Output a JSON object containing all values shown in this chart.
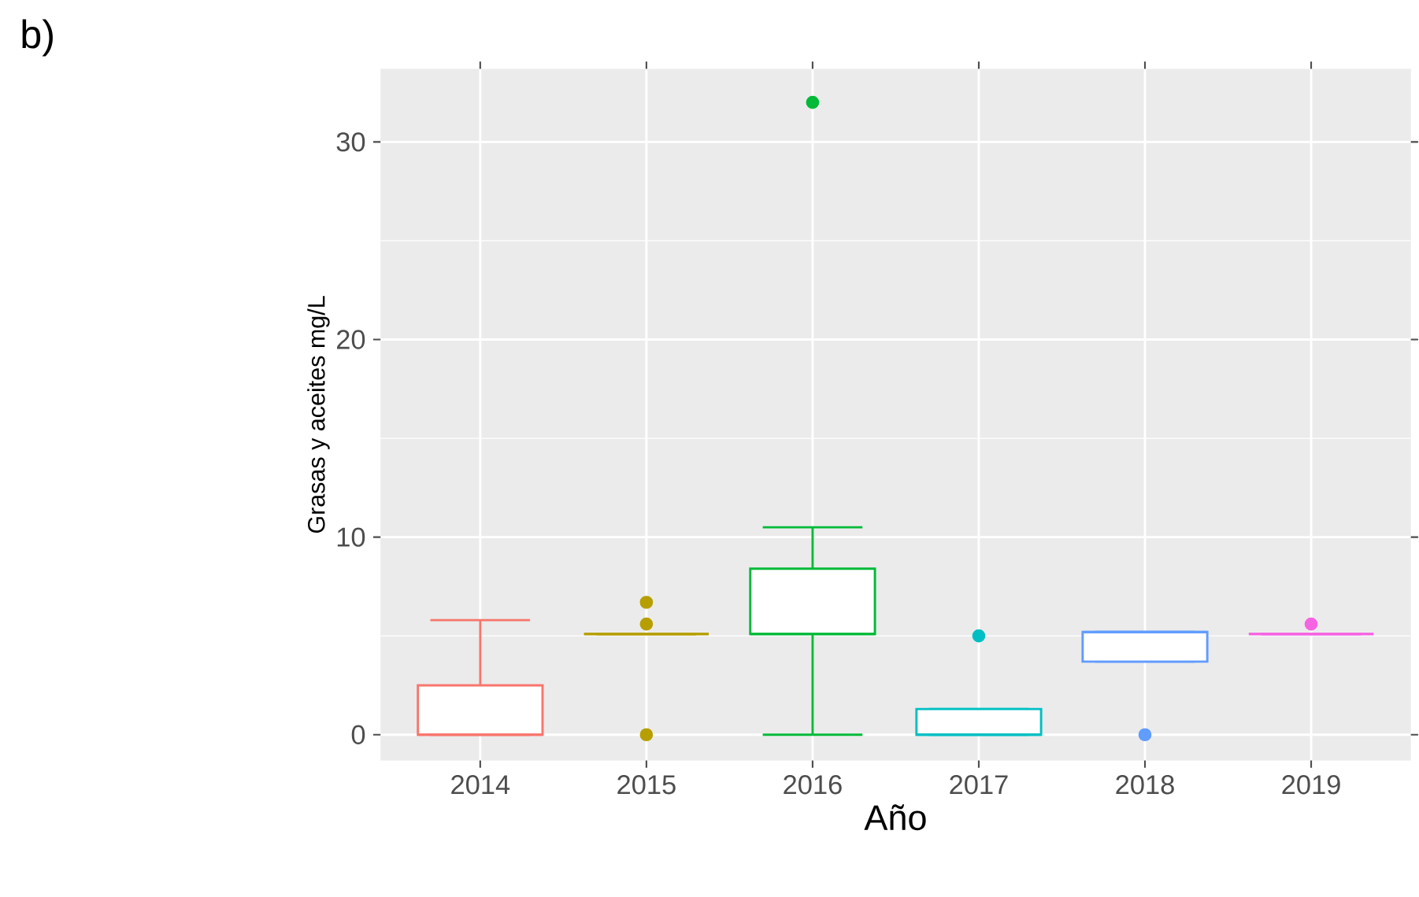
{
  "chart_data": {
    "type": "box",
    "xlabel": "Año",
    "ylabel": "Grasas y aceites mg/L",
    "annotations": [
      "b)"
    ],
    "categories": [
      "2014",
      "2015",
      "2016",
      "2017",
      "2018",
      "2019"
    ],
    "colors": [
      "#f8766d",
      "#b79f00",
      "#00ba38",
      "#00bfc4",
      "#619cff",
      "#f564e3"
    ],
    "boxes": [
      {
        "low": 0,
        "q1": 0,
        "median": 0,
        "q3": 2.5,
        "high": 5.8
      },
      {
        "low": 5.1,
        "q1": 5.1,
        "median": 5.1,
        "q3": 5.1,
        "high": 5.1,
        "outliers": [
          0,
          5.6,
          6.7
        ]
      },
      {
        "low": 0,
        "q1": 5.1,
        "median": 5.1,
        "q3": 8.4,
        "high": 10.5,
        "outliers": [
          32
        ]
      },
      {
        "low": 0,
        "q1": 0,
        "median": 0,
        "q3": 1.3,
        "high": 1.3,
        "outliers": [
          5
        ]
      },
      {
        "low": 3.7,
        "q1": 3.7,
        "median": 5.2,
        "q3": 5.2,
        "high": 5.2,
        "outliers": [
          0
        ]
      },
      {
        "low": 5.1,
        "q1": 5.1,
        "median": 5.1,
        "q3": 5.1,
        "high": 5.1,
        "outliers": [
          5.6
        ]
      }
    ],
    "ylim": [
      -1.3,
      33.7
    ],
    "yticks": [
      0,
      10,
      20,
      30
    ],
    "grid": true
  }
}
